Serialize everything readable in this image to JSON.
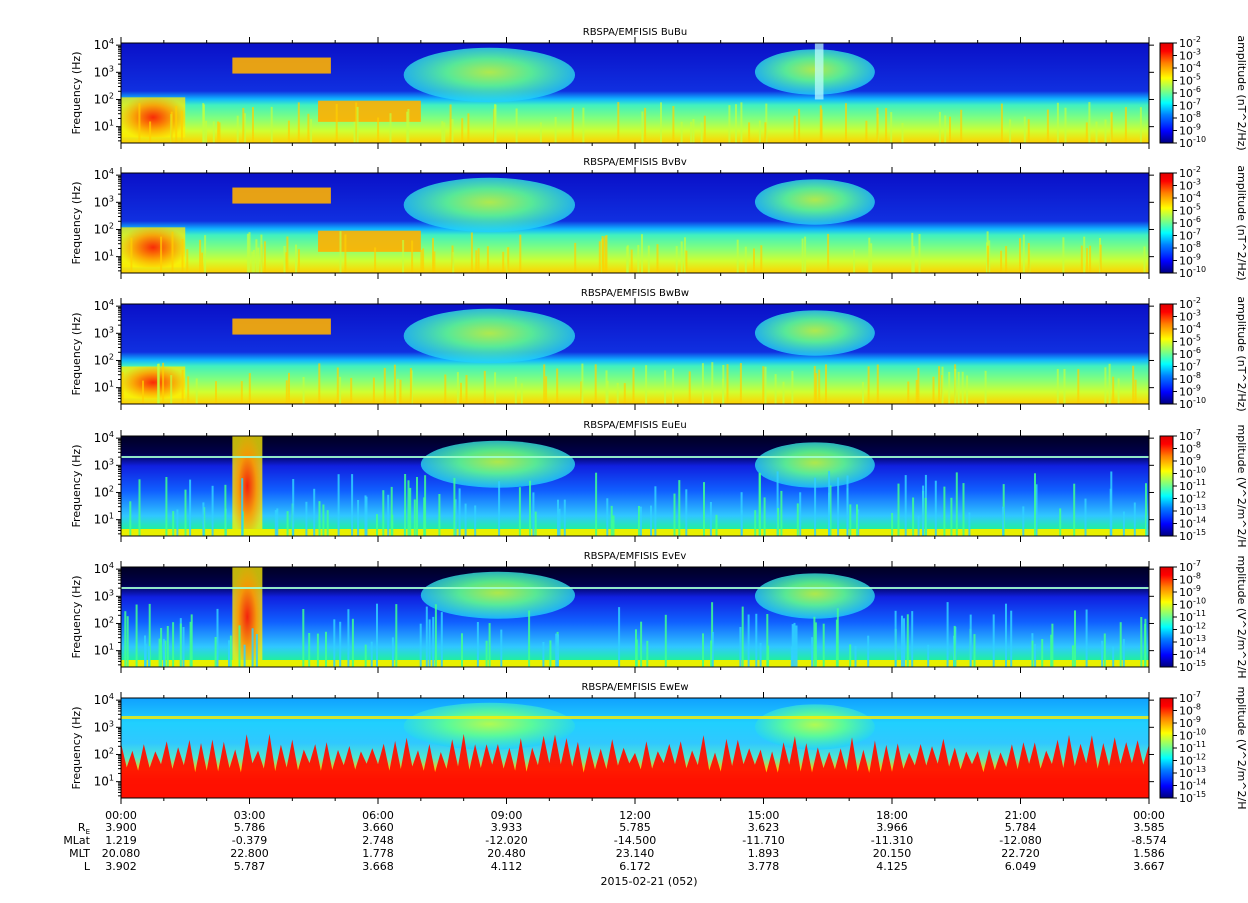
{
  "chart_data": [
    {
      "type": "heatmap",
      "title": "RBSPA/EMFISIS  BuBu",
      "ylabel": "Frequency (Hz)",
      "yscale": "log",
      "ylim": [
        2.5,
        12000
      ],
      "yticks": [
        {
          "base": "10",
          "exp": "4",
          "value": 10000
        },
        {
          "base": "10",
          "exp": "3",
          "value": 1000
        },
        {
          "base": "10",
          "exp": "2",
          "value": 100
        },
        {
          "base": "10",
          "exp": "1",
          "value": 10
        }
      ],
      "colorbar": {
        "label": "amplitude (nT^2/Hz)",
        "scale": "log",
        "range": [
          1e-10,
          0.01
        ],
        "ticks": [
          {
            "base": "10",
            "exp": "-2"
          },
          {
            "base": "10",
            "exp": "-3"
          },
          {
            "base": "10",
            "exp": "-4"
          },
          {
            "base": "10",
            "exp": "-5"
          },
          {
            "base": "10",
            "exp": "-6"
          },
          {
            "base": "10",
            "exp": "-7"
          },
          {
            "base": "10",
            "exp": "-8"
          },
          {
            "base": "10",
            "exp": "-9"
          },
          {
            "base": "10",
            "exp": "-10"
          }
        ]
      },
      "features": [
        {
          "name": "background_band",
          "t": [
            0,
            24
          ],
          "f": [
            2.5,
            100
          ],
          "level": "green-yellow"
        },
        {
          "name": "low_freq_burst",
          "t": [
            0,
            1.5
          ],
          "f": [
            4,
            120
          ],
          "level": "orange-red"
        },
        {
          "name": "chorus_03",
          "t": [
            2.6,
            4.9
          ],
          "f": [
            900,
            3500
          ],
          "level": "yellow-orange"
        },
        {
          "name": "band_05",
          "t": [
            4.6,
            7.0
          ],
          "f": [
            15,
            90
          ],
          "level": "yellow-orange"
        },
        {
          "name": "hiss_08",
          "t": [
            6.6,
            10.6
          ],
          "f": [
            80,
            8000
          ],
          "level": "cyan-green"
        },
        {
          "name": "hiss_16",
          "t": [
            14.8,
            17.6
          ],
          "f": [
            150,
            7000
          ],
          "level": "cyan-green"
        },
        {
          "name": "plasmapause_line",
          "t": [
            16.2,
            16.4
          ],
          "f": [
            100,
            12000
          ],
          "level": "white-cyan"
        }
      ]
    },
    {
      "type": "heatmap",
      "title": "RBSPA/EMFISIS  BvBv",
      "ylabel": "Frequency (Hz)",
      "yscale": "log",
      "ylim": [
        2.5,
        12000
      ],
      "yticks": [
        {
          "base": "10",
          "exp": "4",
          "value": 10000
        },
        {
          "base": "10",
          "exp": "3",
          "value": 1000
        },
        {
          "base": "10",
          "exp": "2",
          "value": 100
        },
        {
          "base": "10",
          "exp": "1",
          "value": 10
        }
      ],
      "colorbar": {
        "label": "amplitude (nT^2/Hz)",
        "scale": "log",
        "range": [
          1e-10,
          0.01
        ],
        "ticks": [
          {
            "base": "10",
            "exp": "-2"
          },
          {
            "base": "10",
            "exp": "-3"
          },
          {
            "base": "10",
            "exp": "-4"
          },
          {
            "base": "10",
            "exp": "-5"
          },
          {
            "base": "10",
            "exp": "-6"
          },
          {
            "base": "10",
            "exp": "-7"
          },
          {
            "base": "10",
            "exp": "-8"
          },
          {
            "base": "10",
            "exp": "-9"
          },
          {
            "base": "10",
            "exp": "-10"
          }
        ]
      },
      "features": [
        {
          "name": "background_band",
          "t": [
            0,
            24
          ],
          "f": [
            2.5,
            100
          ],
          "level": "green-yellow"
        },
        {
          "name": "low_freq_burst",
          "t": [
            0,
            1.5
          ],
          "f": [
            4,
            120
          ],
          "level": "orange-red"
        },
        {
          "name": "chorus_03",
          "t": [
            2.6,
            4.9
          ],
          "f": [
            900,
            3500
          ],
          "level": "yellow-orange"
        },
        {
          "name": "band_05",
          "t": [
            4.6,
            7.0
          ],
          "f": [
            15,
            90
          ],
          "level": "yellow-orange"
        },
        {
          "name": "hiss_08",
          "t": [
            6.6,
            10.6
          ],
          "f": [
            80,
            8000
          ],
          "level": "cyan-green"
        },
        {
          "name": "hiss_16",
          "t": [
            14.8,
            17.6
          ],
          "f": [
            150,
            7000
          ],
          "level": "cyan-green"
        }
      ]
    },
    {
      "type": "heatmap",
      "title": "RBSPA/EMFISIS  BwBw",
      "ylabel": "Frequency (Hz)",
      "yscale": "log",
      "ylim": [
        2.5,
        12000
      ],
      "yticks": [
        {
          "base": "10",
          "exp": "4",
          "value": 10000
        },
        {
          "base": "10",
          "exp": "3",
          "value": 1000
        },
        {
          "base": "10",
          "exp": "2",
          "value": 100
        },
        {
          "base": "10",
          "exp": "1",
          "value": 10
        }
      ],
      "colorbar": {
        "label": "amplitude (nT^2/Hz)",
        "scale": "log",
        "range": [
          1e-10,
          0.01
        ],
        "ticks": [
          {
            "base": "10",
            "exp": "-2"
          },
          {
            "base": "10",
            "exp": "-3"
          },
          {
            "base": "10",
            "exp": "-4"
          },
          {
            "base": "10",
            "exp": "-5"
          },
          {
            "base": "10",
            "exp": "-6"
          },
          {
            "base": "10",
            "exp": "-7"
          },
          {
            "base": "10",
            "exp": "-8"
          },
          {
            "base": "10",
            "exp": "-9"
          },
          {
            "base": "10",
            "exp": "-10"
          }
        ]
      },
      "features": [
        {
          "name": "background_band",
          "t": [
            0,
            24
          ],
          "f": [
            2.5,
            100
          ],
          "level": "green"
        },
        {
          "name": "low_freq_burst",
          "t": [
            0,
            1.5
          ],
          "f": [
            4,
            60
          ],
          "level": "yellow-orange"
        },
        {
          "name": "chorus_03",
          "t": [
            2.6,
            4.9
          ],
          "f": [
            900,
            3500
          ],
          "level": "yellow-orange"
        },
        {
          "name": "hiss_08",
          "t": [
            6.6,
            10.6
          ],
          "f": [
            80,
            8000
          ],
          "level": "cyan-green"
        },
        {
          "name": "hiss_16",
          "t": [
            14.8,
            17.6
          ],
          "f": [
            150,
            7000
          ],
          "level": "cyan-green"
        }
      ]
    },
    {
      "type": "heatmap",
      "title": "RBSPA/EMFISIS  EuEu",
      "ylabel": "Frequency (Hz)",
      "yscale": "log",
      "ylim": [
        2.5,
        12000
      ],
      "yticks": [
        {
          "base": "10",
          "exp": "4",
          "value": 10000
        },
        {
          "base": "10",
          "exp": "3",
          "value": 1000
        },
        {
          "base": "10",
          "exp": "2",
          "value": 100
        },
        {
          "base": "10",
          "exp": "1",
          "value": 10
        }
      ],
      "colorbar": {
        "label": "mplitude (V^2/m^2/H",
        "scale": "log",
        "range": [
          1e-15,
          1e-07
        ],
        "ticks": [
          {
            "base": "10",
            "exp": "-7"
          },
          {
            "base": "10",
            "exp": "-8"
          },
          {
            "base": "10",
            "exp": "-9"
          },
          {
            "base": "10",
            "exp": "-10"
          },
          {
            "base": "10",
            "exp": "-11"
          },
          {
            "base": "10",
            "exp": "-12"
          },
          {
            "base": "10",
            "exp": "-13"
          },
          {
            "base": "10",
            "exp": "-14"
          },
          {
            "base": "10",
            "exp": "-15"
          }
        ]
      },
      "features": [
        {
          "name": "background_band",
          "t": [
            0,
            24
          ],
          "f": [
            2.5,
            3.3
          ],
          "level": "yellow"
        },
        {
          "name": "burst_03",
          "t": [
            2.6,
            3.3
          ],
          "f": [
            2.5,
            12000
          ],
          "level": "orange-red"
        },
        {
          "name": "hiss_08",
          "t": [
            7.0,
            10.6
          ],
          "f": [
            150,
            8000
          ],
          "level": "cyan-green"
        },
        {
          "name": "hiss_16",
          "t": [
            14.8,
            17.6
          ],
          "f": [
            150,
            7000
          ],
          "level": "cyan-green"
        }
      ]
    },
    {
      "type": "heatmap",
      "title": "RBSPA/EMFISIS  EvEv",
      "ylabel": "Frequency (Hz)",
      "yscale": "log",
      "ylim": [
        2.5,
        12000
      ],
      "yticks": [
        {
          "base": "10",
          "exp": "4",
          "value": 10000
        },
        {
          "base": "10",
          "exp": "3",
          "value": 1000
        },
        {
          "base": "10",
          "exp": "2",
          "value": 100
        },
        {
          "base": "10",
          "exp": "1",
          "value": 10
        }
      ],
      "colorbar": {
        "label": "mplitude (V^2/m^2/H",
        "scale": "log",
        "range": [
          1e-15,
          1e-07
        ],
        "ticks": [
          {
            "base": "10",
            "exp": "-7"
          },
          {
            "base": "10",
            "exp": "-8"
          },
          {
            "base": "10",
            "exp": "-9"
          },
          {
            "base": "10",
            "exp": "-10"
          },
          {
            "base": "10",
            "exp": "-11"
          },
          {
            "base": "10",
            "exp": "-12"
          },
          {
            "base": "10",
            "exp": "-13"
          },
          {
            "base": "10",
            "exp": "-14"
          },
          {
            "base": "10",
            "exp": "-15"
          }
        ]
      },
      "features": [
        {
          "name": "background_band",
          "t": [
            0,
            24
          ],
          "f": [
            2.5,
            3.3
          ],
          "level": "yellow"
        },
        {
          "name": "burst_03",
          "t": [
            2.6,
            3.3
          ],
          "f": [
            2.5,
            12000
          ],
          "level": "orange-red"
        },
        {
          "name": "hiss_08",
          "t": [
            7.0,
            10.6
          ],
          "f": [
            150,
            8000
          ],
          "level": "cyan-green"
        },
        {
          "name": "hiss_16",
          "t": [
            14.8,
            17.6
          ],
          "f": [
            150,
            7000
          ],
          "level": "cyan-green"
        }
      ]
    },
    {
      "type": "heatmap",
      "title": "RBSPA/EMFISIS  EwEw",
      "ylabel": "Frequency (Hz)",
      "yscale": "log",
      "ylim": [
        2.5,
        12000
      ],
      "yticks": [
        {
          "base": "10",
          "exp": "4",
          "value": 10000
        },
        {
          "base": "10",
          "exp": "3",
          "value": 1000
        },
        {
          "base": "10",
          "exp": "2",
          "value": 100
        },
        {
          "base": "10",
          "exp": "1",
          "value": 10
        }
      ],
      "colorbar": {
        "label": "mplitude (V^2/m^2/H",
        "scale": "log",
        "range": [
          1e-15,
          1e-07
        ],
        "ticks": [
          {
            "base": "10",
            "exp": "-7"
          },
          {
            "base": "10",
            "exp": "-8"
          },
          {
            "base": "10",
            "exp": "-9"
          },
          {
            "base": "10",
            "exp": "-10"
          },
          {
            "base": "10",
            "exp": "-11"
          },
          {
            "base": "10",
            "exp": "-12"
          },
          {
            "base": "10",
            "exp": "-13"
          },
          {
            "base": "10",
            "exp": "-14"
          },
          {
            "base": "10",
            "exp": "-15"
          }
        ]
      },
      "features": [
        {
          "name": "spin_tone_band",
          "t": [
            0,
            24
          ],
          "f": [
            2.5,
            60
          ],
          "level": "red"
        },
        {
          "name": "hiss_08",
          "t": [
            6.6,
            10.6
          ],
          "f": [
            150,
            8000
          ],
          "level": "cyan-green"
        },
        {
          "name": "hiss_16",
          "t": [
            14.8,
            17.6
          ],
          "f": [
            150,
            7000
          ],
          "level": "cyan-green"
        }
      ]
    }
  ],
  "time_axis": {
    "range_hours": [
      0,
      24
    ],
    "ticks": [
      {
        "t": 0,
        "label": "00:00"
      },
      {
        "t": 3,
        "label": "03:00"
      },
      {
        "t": 6,
        "label": "06:00"
      },
      {
        "t": 9,
        "label": "09:00"
      },
      {
        "t": 12,
        "label": "12:00"
      },
      {
        "t": 15,
        "label": "15:00"
      },
      {
        "t": 18,
        "label": "18:00"
      },
      {
        "t": 21,
        "label": "21:00"
      },
      {
        "t": 24,
        "label": "00:00"
      }
    ],
    "date_label": "2015-02-21 (052)"
  },
  "ephemeris": {
    "rows": [
      {
        "label": "R",
        "sub": "E",
        "values": [
          "3.900",
          "5.786",
          "3.660",
          "3.933",
          "5.785",
          "3.623",
          "3.966",
          "5.784",
          "3.585"
        ]
      },
      {
        "label": "MLat",
        "sub": "",
        "values": [
          "1.219",
          "-0.379",
          "2.748",
          "-12.020",
          "-14.500",
          "-11.710",
          "-11.310",
          "-12.080",
          "-8.574"
        ]
      },
      {
        "label": "MLT",
        "sub": "",
        "values": [
          "20.080",
          "22.800",
          "1.778",
          "20.480",
          "23.140",
          "1.893",
          "20.150",
          "22.720",
          "1.586"
        ]
      },
      {
        "label": "L",
        "sub": "",
        "values": [
          "3.902",
          "5.787",
          "3.668",
          "4.112",
          "6.172",
          "3.778",
          "4.125",
          "6.049",
          "3.667"
        ]
      }
    ]
  },
  "colors": {
    "colormap": [
      "#00007f",
      "#0000ff",
      "#007fff",
      "#00ffff",
      "#7fff7f",
      "#ffff00",
      "#ff7f00",
      "#ff0000",
      "#7f0000"
    ]
  }
}
